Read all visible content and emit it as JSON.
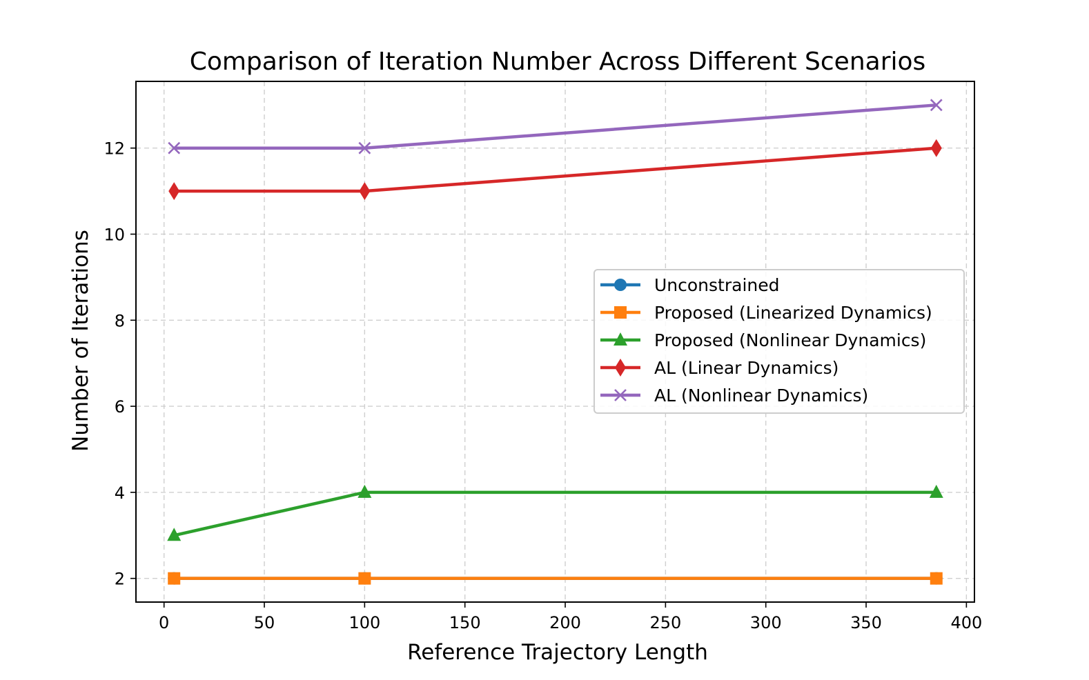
{
  "chart_data": {
    "type": "line",
    "title": "Comparison of Iteration Number Across Different Scenarios",
    "xlabel": "Reference Trajectory Length",
    "ylabel": "Number of Iterations",
    "xlim": [
      -14,
      404
    ],
    "ylim": [
      1.45,
      13.55
    ],
    "xticks": [
      0,
      50,
      100,
      150,
      200,
      250,
      300,
      350,
      400
    ],
    "yticks": [
      2,
      4,
      6,
      8,
      10,
      12
    ],
    "xtick_labels": [
      "0",
      "50",
      "100",
      "150",
      "200",
      "250",
      "300",
      "350",
      "400"
    ],
    "ytick_labels": [
      "2",
      "4",
      "6",
      "8",
      "10",
      "12"
    ],
    "grid": true,
    "legend_position": "center-right",
    "x": [
      5,
      100,
      385
    ],
    "series": [
      {
        "name": "Unconstrained",
        "values": [
          2,
          2,
          2
        ],
        "color": "#1f77b4",
        "marker": "circle"
      },
      {
        "name": "Proposed (Linearized Dynamics)",
        "values": [
          2,
          2,
          2
        ],
        "color": "#ff7f0e",
        "marker": "square"
      },
      {
        "name": "Proposed (Nonlinear Dynamics)",
        "values": [
          3,
          4,
          4
        ],
        "color": "#2ca02c",
        "marker": "triangle"
      },
      {
        "name": "AL (Linear Dynamics)",
        "values": [
          11,
          11,
          12
        ],
        "color": "#d62728",
        "marker": "diamond"
      },
      {
        "name": "AL (Nonlinear Dynamics)",
        "values": [
          12,
          12,
          13
        ],
        "color": "#9467bd",
        "marker": "x"
      }
    ]
  }
}
